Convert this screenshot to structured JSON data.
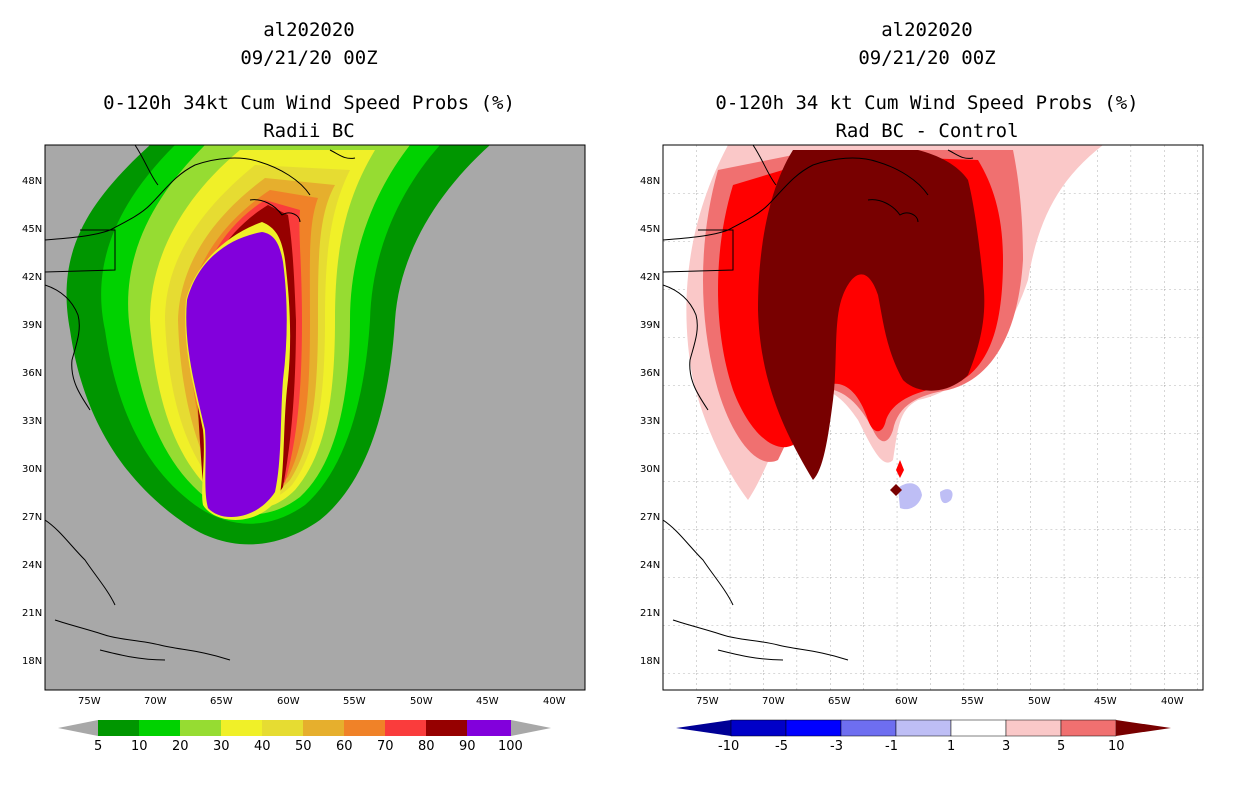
{
  "left": {
    "title1": "al202020",
    "title2": "09/21/20 00Z",
    "title3": "0-120h 34kt Cum Wind Speed Probs (%)",
    "title4": "Radii BC",
    "lat_labels": [
      "48N",
      "45N",
      "42N",
      "39N",
      "36N",
      "33N",
      "30N",
      "27N",
      "24N",
      "21N",
      "18N"
    ],
    "lon_labels": [
      "75W",
      "70W",
      "65W",
      "60W",
      "55W",
      "50W",
      "45W",
      "40W"
    ],
    "colorbar_labels": [
      "5",
      "10",
      "20",
      "30",
      "40",
      "50",
      "60",
      "70",
      "80",
      "90",
      "100"
    ],
    "colorbar_colors": [
      "#009600",
      "#00d200",
      "#96dc32",
      "#f0f028",
      "#e6dc32",
      "#e6af2d",
      "#f08228",
      "#fa3c3c",
      "#960000",
      "#8200dc"
    ],
    "background_color": "#a8a8a8"
  },
  "right": {
    "title1": "al202020",
    "title2": "09/21/20 00Z",
    "title3": "0-120h 34 kt Cum Wind Speed Probs (%)",
    "title4": "Rad BC - Control",
    "lat_labels": [
      "48N",
      "45N",
      "42N",
      "39N",
      "36N",
      "33N",
      "30N",
      "27N",
      "24N",
      "21N",
      "18N"
    ],
    "lon_labels": [
      "75W",
      "70W",
      "65W",
      "60W",
      "55W",
      "50W",
      "45W",
      "40W"
    ],
    "colorbar_labels": [
      "-10",
      "-5",
      "-3",
      "-1",
      "1",
      "3",
      "5",
      "10"
    ],
    "colorbar_colors": [
      "#0000c8",
      "#0000ff",
      "#6e6ef0",
      "#bebef5",
      "#ffffff",
      "#fac8c8",
      "#f07070",
      "#ff0000"
    ],
    "colorbar_end_colors": [
      "#000096",
      "#780000"
    ],
    "background_color": "#ffffff"
  }
}
